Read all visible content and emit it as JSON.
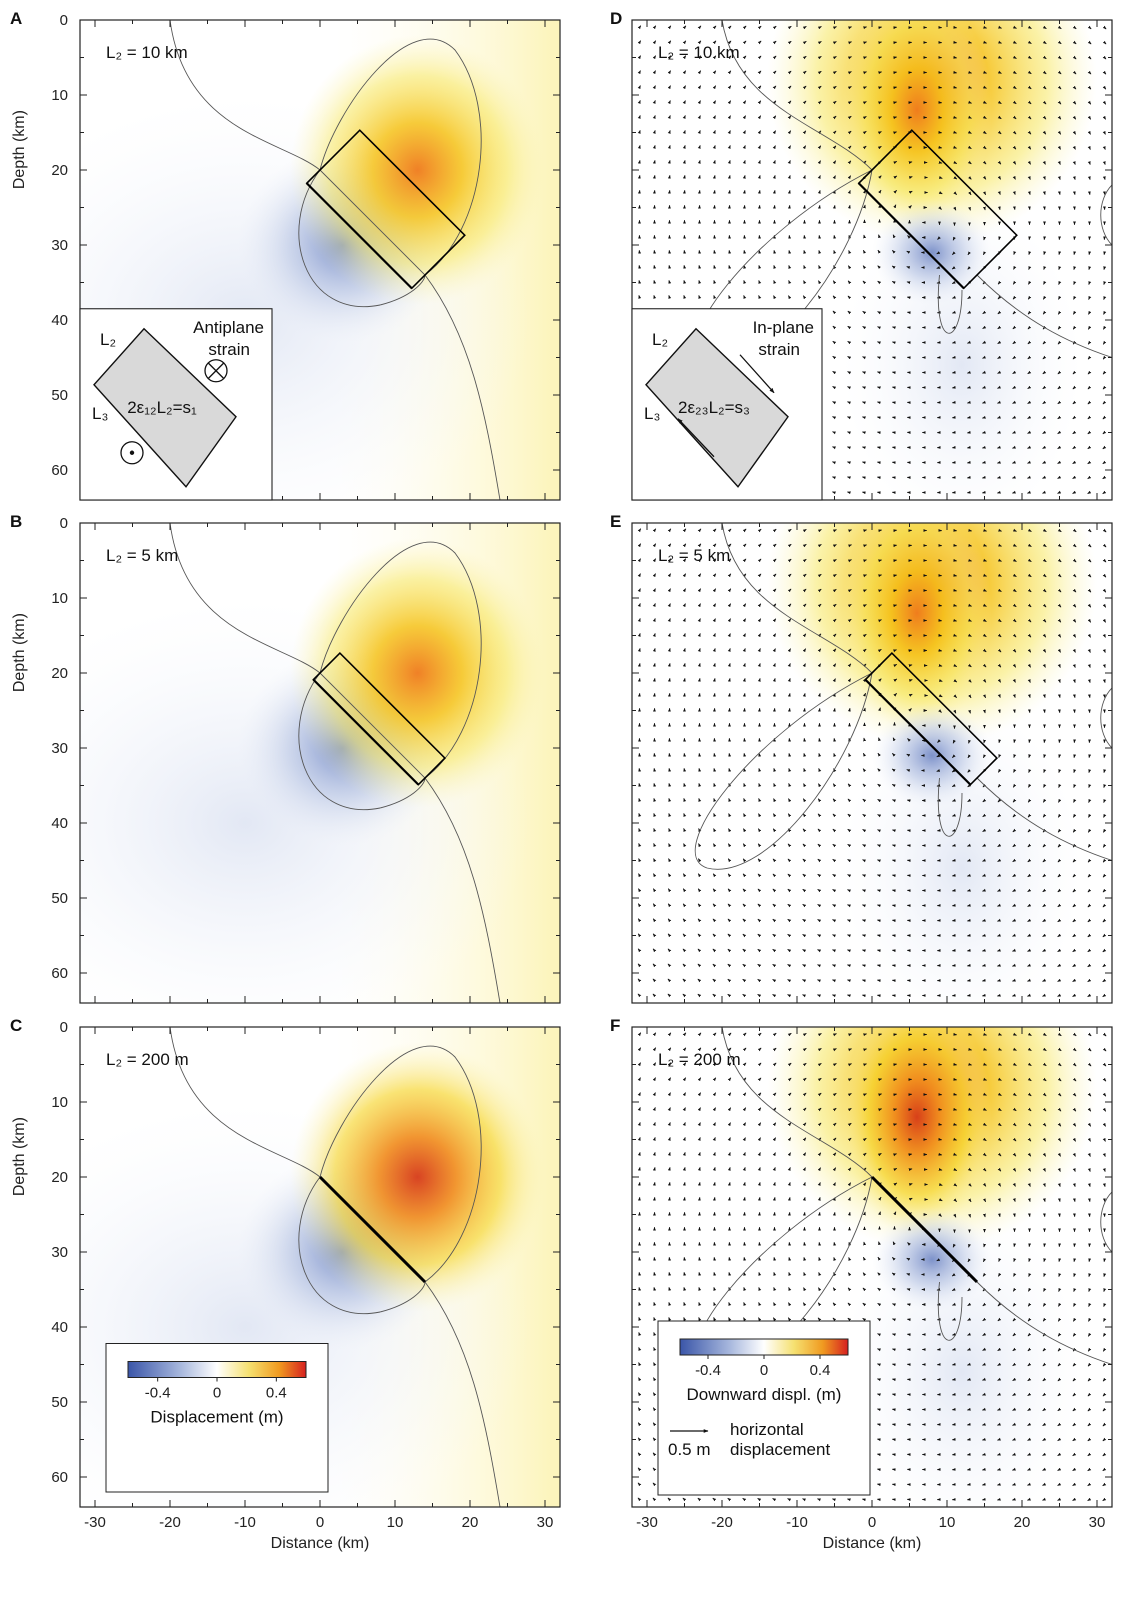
{
  "chart_data": [
    {
      "type": "heatmap",
      "panel": "A",
      "l2_label": "L₂ = 10 km",
      "l2_km": 10,
      "x_range": [
        -32,
        32
      ],
      "y_range": [
        0,
        64
      ],
      "xlabel": "",
      "ylabel": "Depth (km)",
      "yticks": [
        "0",
        "10",
        "20",
        "30",
        "40",
        "50",
        "60"
      ],
      "inset": {
        "title_line1": "Antiplane",
        "title_line2": "strain",
        "l2": "L₂",
        "l3": "L₃",
        "formula": "2ε₁₂L₂=s₁"
      }
    },
    {
      "type": "heatmap",
      "panel": "B",
      "l2_label": "L₂ = 5 km",
      "l2_km": 5,
      "x_range": [
        -32,
        32
      ],
      "y_range": [
        0,
        64
      ],
      "xlabel": "",
      "ylabel": "Depth (km)",
      "yticks": [
        "0",
        "10",
        "20",
        "30",
        "40",
        "50",
        "60"
      ]
    },
    {
      "type": "heatmap",
      "panel": "C",
      "l2_label": "L₂ = 200 m",
      "l2_km": 0.2,
      "x_range": [
        -32,
        32
      ],
      "y_range": [
        0,
        64
      ],
      "xlabel": "Distance (km)",
      "ylabel": "Depth (km)",
      "xticks": [
        "-30",
        "-20",
        "-10",
        "0",
        "10",
        "20",
        "30"
      ],
      "yticks": [
        "0",
        "10",
        "20",
        "30",
        "40",
        "50",
        "60"
      ],
      "colorbar": {
        "label": "Displacement (m)",
        "ticks": [
          "-0.4",
          "0",
          "0.4"
        ],
        "tick_values": [
          -0.4,
          0,
          0.4
        ],
        "range": [
          -0.6,
          0.6
        ]
      }
    },
    {
      "type": "heatmap",
      "panel": "D",
      "l2_label": "L₂ = 10 km",
      "l2_km": 10,
      "x_range": [
        -32,
        32
      ],
      "y_range": [
        0,
        64
      ],
      "xlabel": "",
      "ylabel": "",
      "inset": {
        "title_line1": "In-plane",
        "title_line2": "strain",
        "l2": "L₂",
        "l3": "L₃",
        "formula": "2ε₂₃L₂=s₃"
      }
    },
    {
      "type": "heatmap",
      "panel": "E",
      "l2_label": "L₂ = 5 km",
      "l2_km": 5,
      "x_range": [
        -32,
        32
      ],
      "y_range": [
        0,
        64
      ],
      "xlabel": "",
      "ylabel": ""
    },
    {
      "type": "heatmap",
      "panel": "F",
      "l2_label": "L₂ = 200 m",
      "l2_km": 0.2,
      "x_range": [
        -32,
        32
      ],
      "y_range": [
        0,
        64
      ],
      "xlabel": "Distance (km)",
      "ylabel": "",
      "xticks": [
        "-30",
        "-20",
        "-10",
        "0",
        "10",
        "20",
        "30"
      ],
      "colorbar": {
        "label": "Downward displ. (m)",
        "ticks": [
          "-0.4",
          "0",
          "0.4"
        ],
        "tick_values": [
          -0.4,
          0,
          0.4
        ],
        "range": [
          -0.6,
          0.6
        ]
      },
      "vector_legend": {
        "value": "0.5 m",
        "label_line1": "horizontal",
        "label_line2": "displacement"
      }
    }
  ],
  "fault_geometry": {
    "top_x_km": 0,
    "top_depth_km": 20,
    "bottom_x_km": 14,
    "bottom_depth_km": 34
  },
  "colors": {
    "negative": "#3a55a8",
    "zero": "#ffffff",
    "positive_mid": "#f5d400",
    "positive_max": "#d62020",
    "contour": "#555555",
    "box": "#000000"
  }
}
